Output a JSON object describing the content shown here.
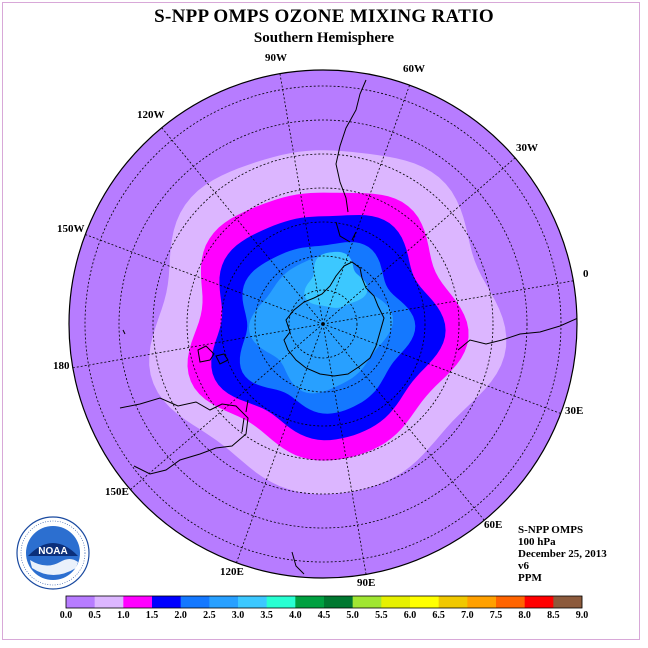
{
  "title": "S-NPP OMPS OZONE MIXING RATIO",
  "subtitle": "Southern Hemisphere",
  "longitude_labels": {
    "w90": "90W",
    "w60": "60W",
    "w30": "30W",
    "w120": "120W",
    "w150": "150W",
    "zero": "0",
    "deg180": "180",
    "e30": "30E",
    "e60": "60E",
    "e90": "90E",
    "e120": "120E",
    "e150": "150E"
  },
  "info": {
    "instrument": "S-NPP OMPS",
    "level": "100 hPa",
    "date": "December 25, 2013",
    "version": "v6",
    "units": "PPM"
  },
  "logo": {
    "text": "NOAA",
    "icon": "noaa-logo-icon"
  },
  "colorbar": {
    "ticks": [
      "0.0",
      "0.5",
      "1.0",
      "1.5",
      "2.0",
      "2.5",
      "3.0",
      "3.5",
      "4.0",
      "4.5",
      "5.0",
      "5.5",
      "6.0",
      "6.5",
      "7.0",
      "7.5",
      "8.0",
      "8.5",
      "9.0"
    ],
    "colors": [
      "#b77cff",
      "#dcb6ff",
      "#ff00ff",
      "#0000ff",
      "#1478ff",
      "#28a0ff",
      "#3cc8ff",
      "#28ffd2",
      "#00a040",
      "#007830",
      "#a0e632",
      "#e6f000",
      "#ffff00",
      "#f0c800",
      "#ffa000",
      "#ff6400",
      "#ff0000",
      "#8c5a3c"
    ]
  },
  "map_colors": {
    "bin_0_0_5": "#b77cff",
    "bin_0_5_1_0": "#dcb6ff",
    "bin_1_0_1_5": "#ff00ff",
    "bin_1_5_2_0": "#0000ff",
    "bin_2_0_2_5": "#1478ff",
    "bin_2_5_3_0": "#28a0ff",
    "bin_3_0_3_5": "#3cc8ff"
  }
}
